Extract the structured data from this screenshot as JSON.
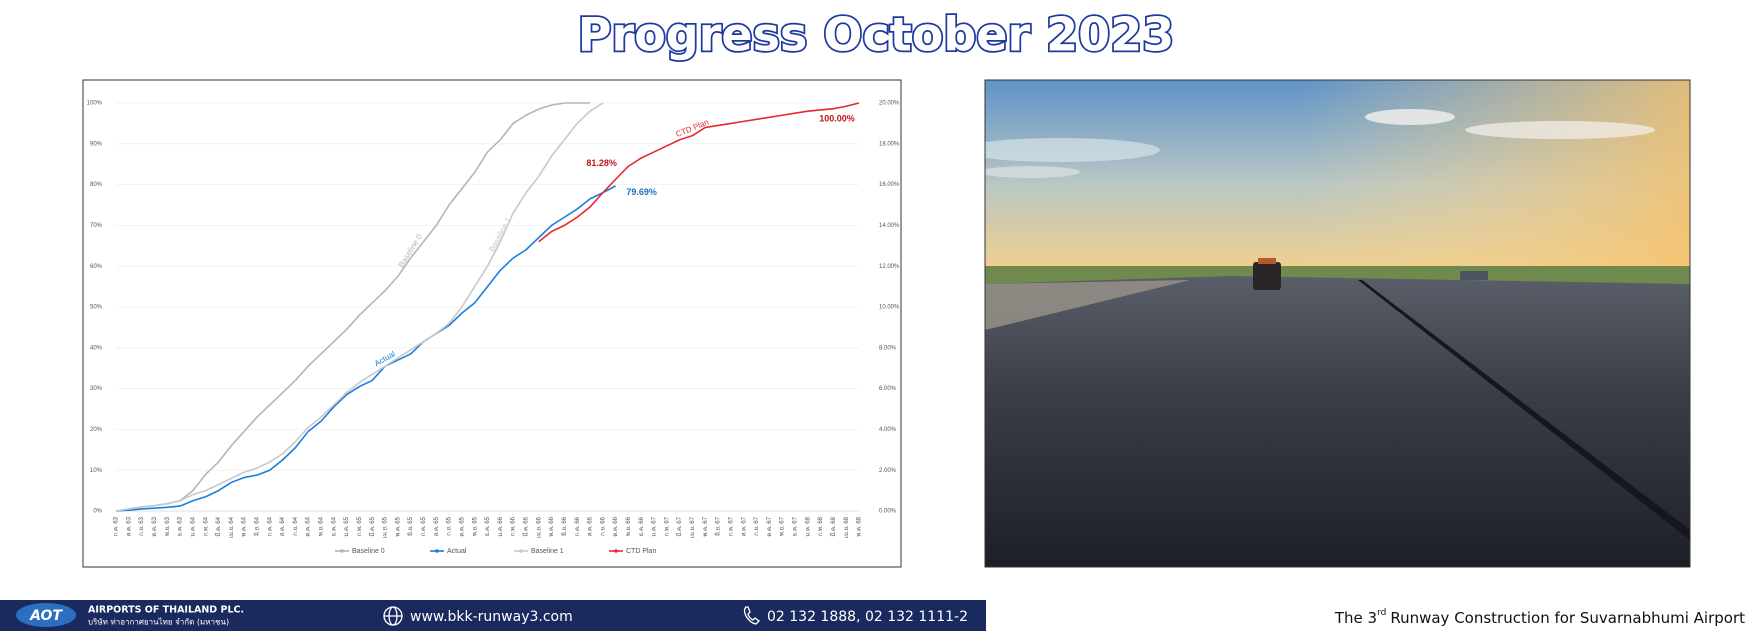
{
  "header": {
    "title": "Progress October 2023"
  },
  "chart_data": {
    "type": "line",
    "categories": [
      "ก.ค. 63",
      "ส.ค. 63",
      "ก.ย. 63",
      "ต.ค. 63",
      "พ.ย. 63",
      "ธ.ค. 63",
      "ม.ค. 64",
      "ก.พ. 64",
      "มี.ค. 64",
      "เม.ย. 64",
      "พ.ค. 64",
      "มิ.ย. 64",
      "ก.ค. 64",
      "ส.ค. 64",
      "ก.ย. 64",
      "ต.ค. 64",
      "พ.ย. 64",
      "ธ.ค. 64",
      "ม.ค. 65",
      "ก.พ. 65",
      "มี.ค. 65",
      "เม.ย. 65",
      "พ.ค. 65",
      "มิ.ย. 65",
      "ก.ค. 65",
      "ส.ค. 65",
      "ก.ย. 65",
      "ต.ค. 65",
      "พ.ย. 65",
      "ธ.ค. 65",
      "ม.ค. 66",
      "ก.พ. 66",
      "มี.ค. 66",
      "เม.ย. 66",
      "พ.ค. 66",
      "มิ.ย. 66",
      "ก.ค. 66",
      "ส.ค. 66",
      "ก.ย. 66",
      "ต.ค. 66",
      "พ.ย. 66",
      "ธ.ค. 66",
      "ม.ค. 67",
      "ก.พ. 67",
      "มี.ค. 67",
      "เม.ย. 67",
      "พ.ค. 67",
      "มิ.ย. 67",
      "ก.ค. 67",
      "ส.ค. 67",
      "ก.ย. 67",
      "ต.ค. 67",
      "พ.ย. 67",
      "ธ.ค. 67",
      "ม.ค. 68",
      "ก.พ. 68",
      "มี.ค. 68",
      "เม.ย. 68",
      "พ.ค. 68"
    ],
    "series": [
      {
        "name": "Baseline 0",
        "color": "#b5b5b5",
        "values": [
          0,
          0.5,
          1,
          1.3,
          1.8,
          2.5,
          5,
          9,
          12,
          16,
          19.5,
          23,
          26,
          29,
          32,
          35.5,
          38.5,
          41.5,
          44.5,
          48,
          51,
          54,
          57.5,
          62,
          66,
          70,
          75,
          79,
          83,
          88,
          91,
          95,
          97,
          98.5,
          99.5,
          100,
          100,
          100,
          null,
          null,
          null,
          null,
          null,
          null,
          null,
          null,
          null,
          null,
          null,
          null,
          null,
          null,
          null,
          null,
          null,
          null,
          null,
          null,
          null
        ]
      },
      {
        "name": "Actual",
        "color": "#1a7fe0",
        "values": [
          0,
          0.2,
          0.5,
          0.7,
          0.9,
          1.2,
          2.5,
          3.5,
          5,
          7,
          8.2,
          8.8,
          10,
          12.5,
          15.5,
          19.5,
          22,
          25.5,
          28.5,
          30.5,
          32,
          35.5,
          37,
          38.5,
          41.5,
          43.5,
          45.5,
          48.5,
          51,
          55,
          59,
          62,
          64,
          67,
          70,
          72,
          74,
          76.5,
          78,
          79.69,
          null,
          null,
          null,
          null,
          null,
          null,
          null,
          null,
          null,
          null,
          null,
          null,
          null,
          null,
          null,
          null,
          null,
          null,
          null
        ],
        "value_labels": [
          null,
          null,
          null,
          null,
          null,
          null,
          null,
          null,
          null,
          null,
          null,
          null,
          null,
          null,
          null,
          null,
          null,
          null,
          null,
          null,
          null,
          null,
          null,
          null,
          null,
          null,
          null,
          null,
          null,
          null,
          null,
          null,
          null,
          null,
          null,
          null,
          null,
          null,
          null,
          "79.69%",
          null,
          null,
          null,
          null,
          null,
          null,
          null,
          null,
          null,
          null,
          null,
          null,
          null,
          null,
          null,
          null,
          null,
          null,
          null
        ]
      },
      {
        "name": "Baseline 1",
        "color": "#c8c8c8",
        "values": [
          0,
          0.5,
          1,
          1.3,
          1.8,
          2.5,
          4,
          5,
          6.5,
          8,
          9.5,
          10.5,
          12,
          14,
          17,
          20.5,
          23,
          26,
          29,
          31.5,
          33.5,
          35.5,
          37.5,
          39.5,
          41.5,
          43.5,
          46,
          50,
          55,
          60,
          66,
          73,
          78,
          82,
          87,
          91,
          95,
          98,
          100,
          null,
          null,
          null,
          null,
          null,
          null,
          null,
          null,
          null,
          null,
          null,
          null,
          null,
          null,
          null,
          null,
          null,
          null,
          null,
          null
        ]
      },
      {
        "name": "CTD Plan",
        "color": "#e8282e",
        "values": [
          null,
          null,
          null,
          null,
          null,
          null,
          null,
          null,
          null,
          null,
          null,
          null,
          null,
          null,
          null,
          null,
          null,
          null,
          null,
          null,
          null,
          null,
          null,
          null,
          null,
          null,
          null,
          null,
          null,
          null,
          null,
          null,
          null,
          66,
          68.5,
          70,
          72,
          74.5,
          78,
          81.28,
          84.5,
          86.5,
          88,
          89.5,
          91,
          92,
          94,
          94.5,
          95,
          95.5,
          96,
          96.5,
          97,
          97.5,
          98,
          98.3,
          98.6,
          99.2,
          100
        ],
        "value_labels": [
          null,
          null,
          null,
          null,
          null,
          null,
          null,
          null,
          null,
          null,
          null,
          null,
          null,
          null,
          null,
          null,
          null,
          null,
          null,
          null,
          null,
          null,
          null,
          null,
          null,
          null,
          null,
          null,
          null,
          null,
          null,
          null,
          null,
          null,
          null,
          null,
          null,
          null,
          null,
          "81.28%",
          null,
          null,
          null,
          null,
          null,
          null,
          null,
          null,
          null,
          null,
          null,
          null,
          null,
          null,
          null,
          null,
          null,
          null,
          "100.00%"
        ]
      }
    ],
    "ylim": [
      0,
      100
    ],
    "yticks": [
      {
        "value": 0,
        "label": "0%"
      },
      {
        "value": 10,
        "label": "10%"
      },
      {
        "value": 20,
        "label": "20%"
      },
      {
        "value": 30,
        "label": "30%"
      },
      {
        "value": 40,
        "label": "40%"
      },
      {
        "value": 50,
        "label": "50%"
      },
      {
        "value": 60,
        "label": "60%"
      },
      {
        "value": 70,
        "label": "70%"
      },
      {
        "value": 80,
        "label": "80%"
      },
      {
        "value": 90,
        "label": "90%"
      },
      {
        "value": 100,
        "label": "100%"
      }
    ],
    "y2lim": [
      0,
      20
    ],
    "y2ticks": [
      {
        "value": 0,
        "label": "0.00%"
      },
      {
        "value": 2,
        "label": "2.00%"
      },
      {
        "value": 4,
        "label": "4.00%"
      },
      {
        "value": 6,
        "label": "6.00%"
      },
      {
        "value": 8,
        "label": "8.00%"
      },
      {
        "value": 10,
        "label": "10.00%"
      },
      {
        "value": 12,
        "label": "12.00%"
      },
      {
        "value": 14,
        "label": "14.00%"
      },
      {
        "value": 16,
        "label": "16.00%"
      },
      {
        "value": 18,
        "label": "18.00%"
      },
      {
        "value": 20,
        "label": "20.00%"
      }
    ],
    "grid": true,
    "legend": "bottom"
  },
  "footer": {
    "logo": "AOT",
    "company": "AIRPORTS OF THAILAND PLC.",
    "company_thai": "บริษัท ท่าอากาศยานไทย จำกัด (มหาชน)",
    "website": "www.bkk-runway3.com",
    "phone": "02 132 1888, 02 132 1111-2",
    "tagline_start": "The 3",
    "tagline_sup": "rd",
    "tagline_end": "Runway Construction for Suvarnabhumi Airport"
  }
}
